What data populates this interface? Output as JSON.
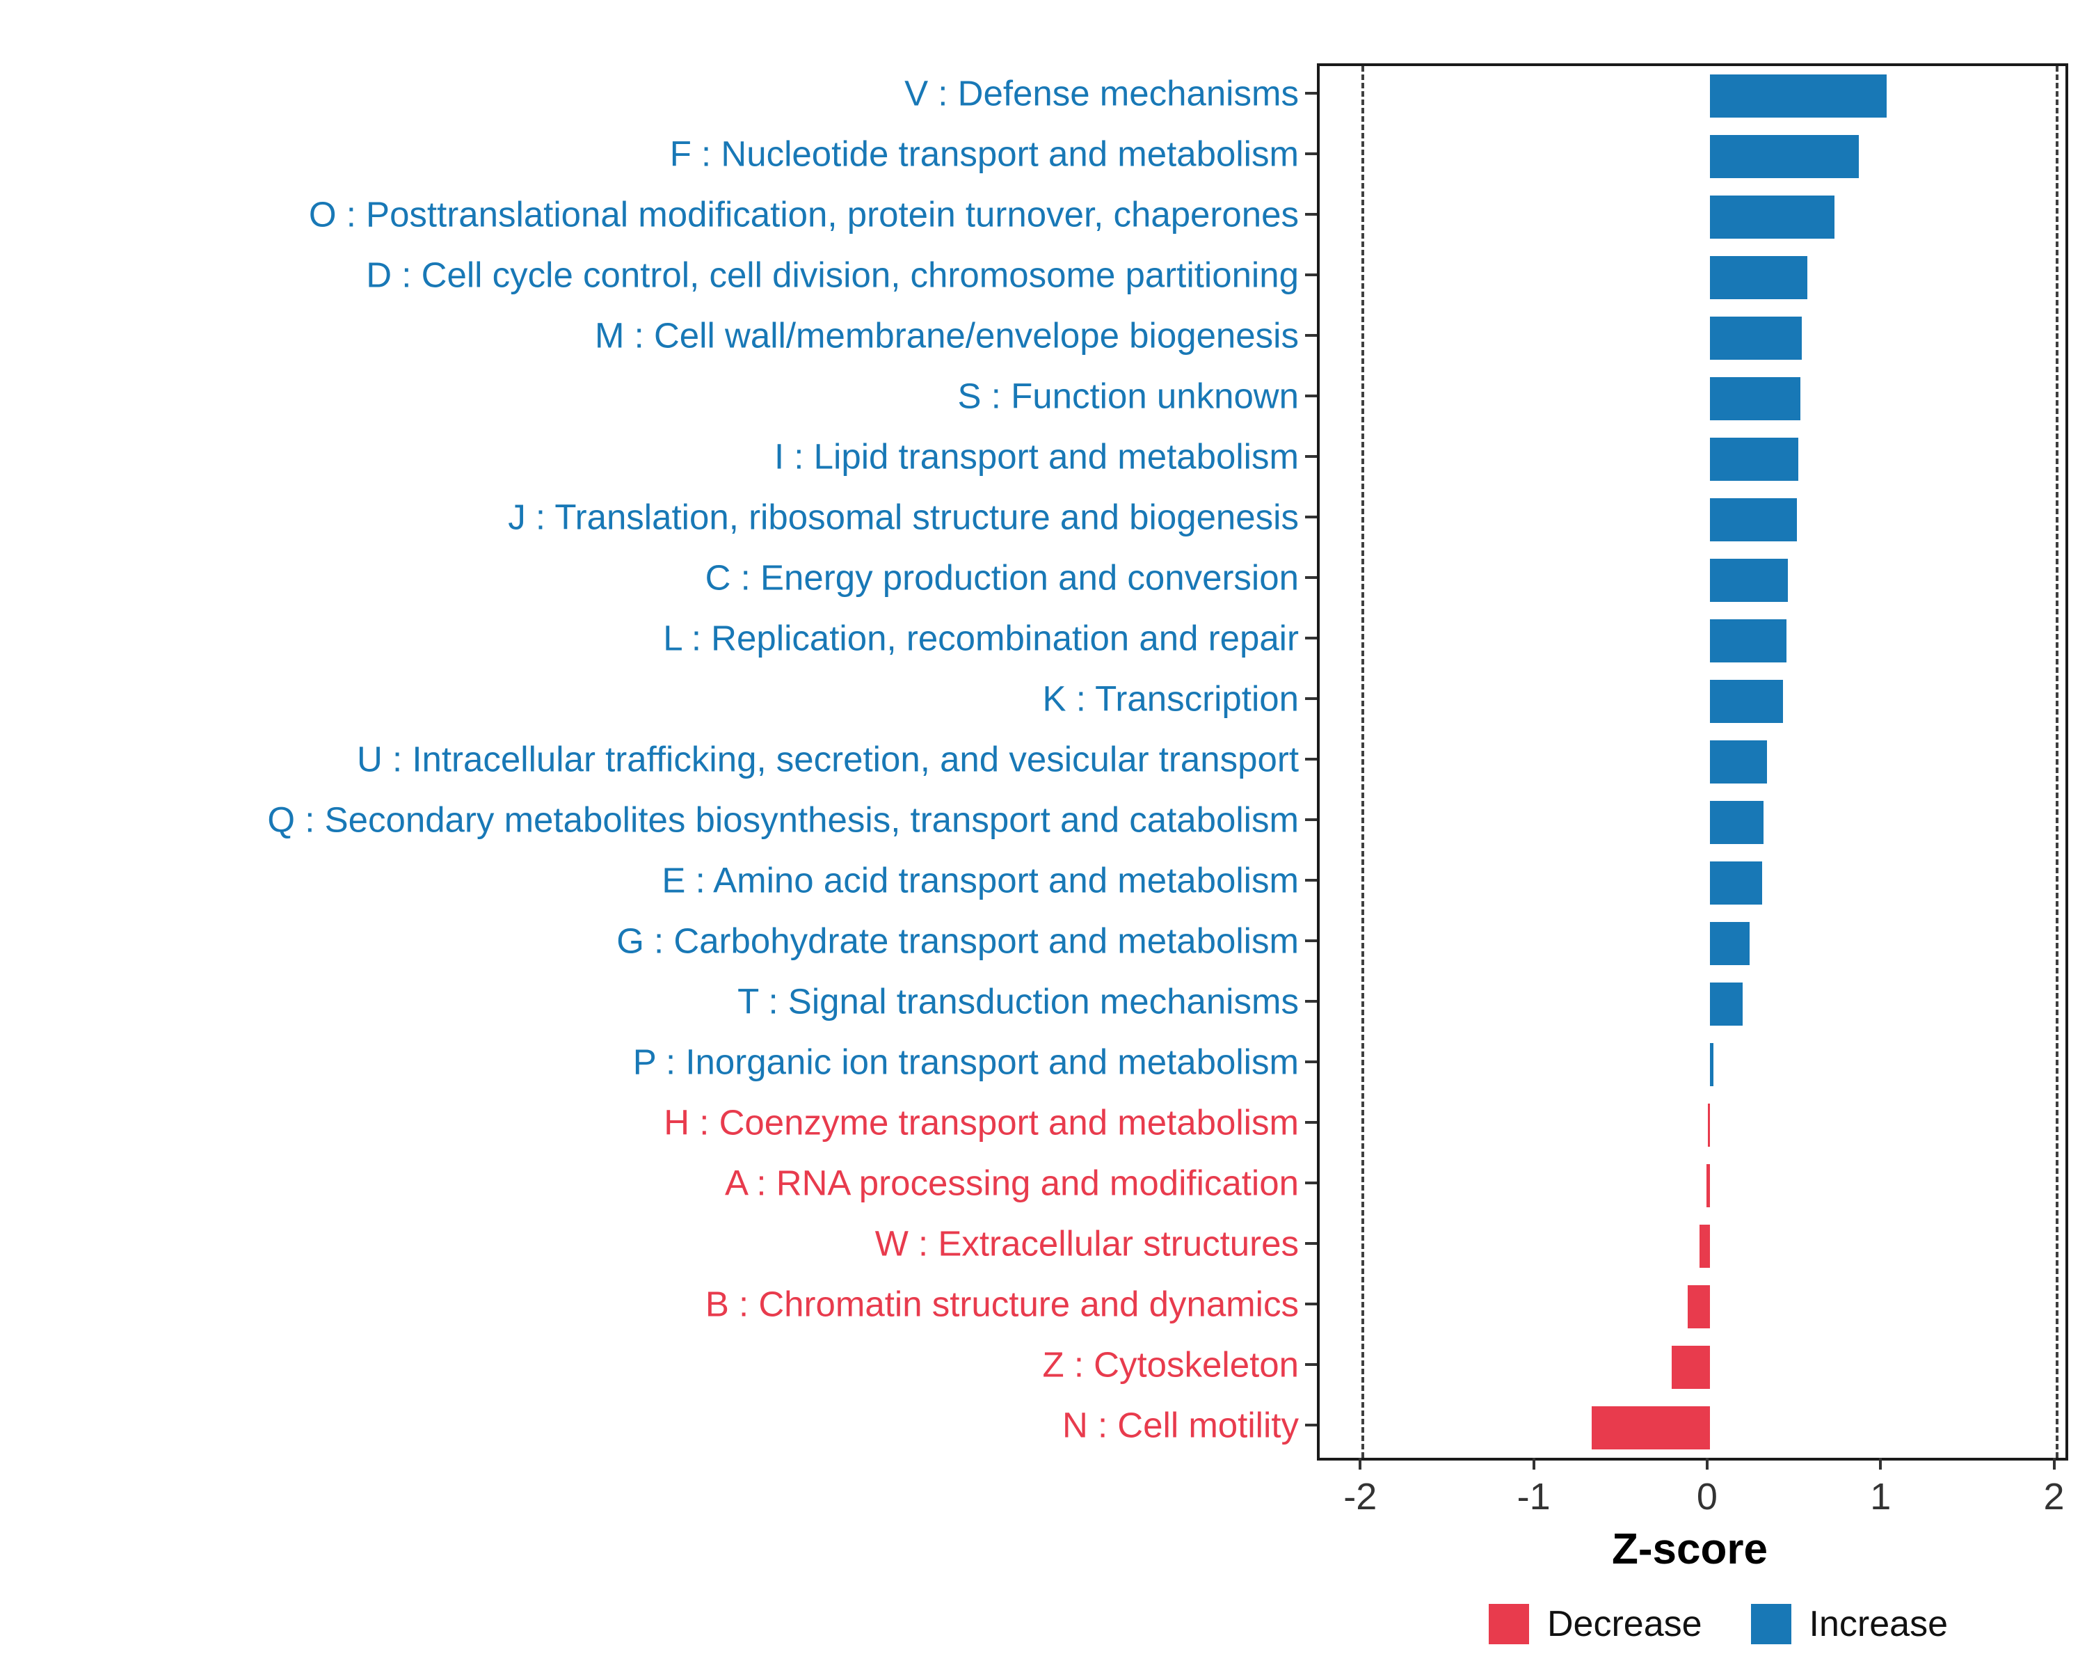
{
  "chart_data": {
    "type": "bar",
    "orientation": "horizontal",
    "title": "",
    "xlabel": "Z-score",
    "ylabel": "",
    "xlim": [
      -2.25,
      2.05
    ],
    "x_ticks": [
      -2,
      -1,
      0,
      1,
      2
    ],
    "reference_lines": [
      -2,
      2
    ],
    "grid": false,
    "legend_position": "bottom-right",
    "colors": {
      "increase": "#1878B6",
      "decrease": "#E83B4D"
    },
    "legend": [
      {
        "label": "Decrease",
        "direction": "decrease"
      },
      {
        "label": "Increase",
        "direction": "increase"
      }
    ],
    "categories": [
      {
        "label": "V : Defense mechanisms",
        "value": 1.02,
        "direction": "increase"
      },
      {
        "label": "F : Nucleotide transport and metabolism",
        "value": 0.86,
        "direction": "increase"
      },
      {
        "label": "O : Posttranslational modification, protein turnover, chaperones",
        "value": 0.72,
        "direction": "increase"
      },
      {
        "label": "D : Cell cycle control, cell division, chromosome partitioning",
        "value": 0.56,
        "direction": "increase"
      },
      {
        "label": "M : Cell wall/membrane/envelope biogenesis",
        "value": 0.53,
        "direction": "increase"
      },
      {
        "label": "S : Function unknown",
        "value": 0.52,
        "direction": "increase"
      },
      {
        "label": "I : Lipid transport and metabolism",
        "value": 0.51,
        "direction": "increase"
      },
      {
        "label": "J : Translation, ribosomal structure and biogenesis",
        "value": 0.5,
        "direction": "increase"
      },
      {
        "label": "C : Energy production and conversion",
        "value": 0.45,
        "direction": "increase"
      },
      {
        "label": "L : Replication, recombination and repair",
        "value": 0.44,
        "direction": "increase"
      },
      {
        "label": "K : Transcription",
        "value": 0.42,
        "direction": "increase"
      },
      {
        "label": "U : Intracellular trafficking, secretion, and vesicular transport",
        "value": 0.33,
        "direction": "increase"
      },
      {
        "label": "Q : Secondary metabolites biosynthesis, transport and catabolism",
        "value": 0.31,
        "direction": "increase"
      },
      {
        "label": "E : Amino acid transport and metabolism",
        "value": 0.3,
        "direction": "increase"
      },
      {
        "label": "G : Carbohydrate transport and metabolism",
        "value": 0.23,
        "direction": "increase"
      },
      {
        "label": "T : Signal transduction mechanisms",
        "value": 0.19,
        "direction": "increase"
      },
      {
        "label": "P : Inorganic ion transport and metabolism",
        "value": 0.02,
        "direction": "increase"
      },
      {
        "label": "H : Coenzyme transport and metabolism",
        "value": -0.01,
        "direction": "decrease"
      },
      {
        "label": "A : RNA processing and modification",
        "value": -0.02,
        "direction": "decrease"
      },
      {
        "label": "W : Extracellular structures",
        "value": -0.06,
        "direction": "decrease"
      },
      {
        "label": "B : Chromatin structure and dynamics",
        "value": -0.13,
        "direction": "decrease"
      },
      {
        "label": "Z : Cytoskeleton",
        "value": -0.22,
        "direction": "decrease"
      },
      {
        "label": "N : Cell motility",
        "value": -0.68,
        "direction": "decrease"
      }
    ]
  }
}
